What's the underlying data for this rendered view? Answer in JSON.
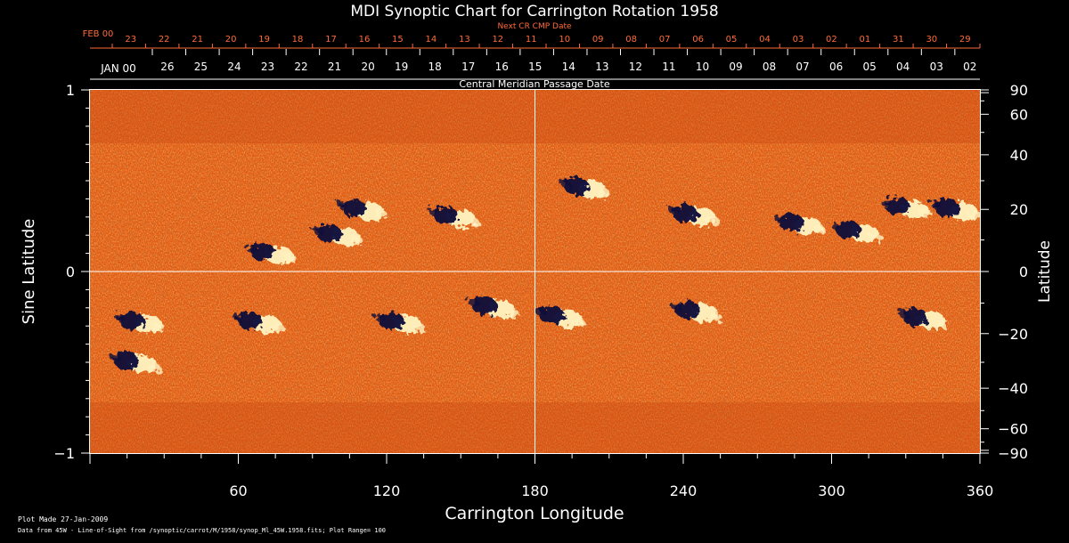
{
  "chart_data": {
    "type": "heatmap",
    "title": "MDI Synoptic Chart for Carrington Rotation 1958",
    "top_axis_red_label": "Next CR CMP Date",
    "top_axis_red_start": "FEB 00",
    "top_axis_red_ticks": [
      "23",
      "22",
      "21",
      "20",
      "19",
      "18",
      "17",
      "16",
      "15",
      "14",
      "13",
      "12",
      "11",
      "10",
      "09",
      "08",
      "07",
      "06",
      "05",
      "04",
      "03",
      "02",
      "01",
      "31",
      "30",
      "29"
    ],
    "top_axis_white_start": "JAN 00",
    "top_axis_white_ticks": [
      "26",
      "25",
      "24",
      "23",
      "22",
      "21",
      "20",
      "19",
      "18",
      "17",
      "16",
      "15",
      "14",
      "13",
      "12",
      "11",
      "10",
      "09",
      "08",
      "07",
      "06",
      "05",
      "04",
      "03",
      "02"
    ],
    "top_axis_subtitle": "Central Meridian Passage Date",
    "xlabel": "Carrington Longitude",
    "xlim": [
      0,
      360
    ],
    "x_ticks": [
      60,
      120,
      180,
      240,
      300,
      360
    ],
    "ylabel_left": "Sine Latitude",
    "ylim_left": [
      -1,
      1
    ],
    "y_ticks_left": [
      "1",
      "0",
      "−1"
    ],
    "ylabel_right": "Latitude",
    "y_ticks_right": [
      {
        "lat": 90,
        "label": "90"
      },
      {
        "lat": 60,
        "label": "60"
      },
      {
        "lat": 40,
        "label": "40"
      },
      {
        "lat": 20,
        "label": "20"
      },
      {
        "lat": 0,
        "label": "0"
      },
      {
        "lat": -20,
        "label": "−20"
      },
      {
        "lat": -40,
        "label": "−40"
      },
      {
        "lat": -60,
        "label": "−60"
      },
      {
        "lat": -90,
        "label": "−90"
      }
    ],
    "colors": {
      "background_field": "#e05a14",
      "positive_polarity": "#fff3c0",
      "negative_polarity": "#0a0a3a"
    },
    "active_regions": [
      {
        "lon": 18,
        "sinlat": -0.5,
        "polarity": "mixed"
      },
      {
        "lon": 20,
        "sinlat": -0.28,
        "polarity": "mixed"
      },
      {
        "lon": 73,
        "sinlat": 0.1,
        "polarity": "mixed"
      },
      {
        "lon": 68,
        "sinlat": -0.28,
        "polarity": "mixed"
      },
      {
        "lon": 110,
        "sinlat": 0.34,
        "polarity": "mixed"
      },
      {
        "lon": 100,
        "sinlat": 0.2,
        "polarity": "mixed"
      },
      {
        "lon": 125,
        "sinlat": -0.28,
        "polarity": "mixed"
      },
      {
        "lon": 147,
        "sinlat": 0.3,
        "polarity": "mixed"
      },
      {
        "lon": 163,
        "sinlat": -0.2,
        "polarity": "mixed"
      },
      {
        "lon": 190,
        "sinlat": -0.25,
        "polarity": "mixed"
      },
      {
        "lon": 200,
        "sinlat": 0.46,
        "polarity": "mixed"
      },
      {
        "lon": 245,
        "sinlat": -0.22,
        "polarity": "mixed"
      },
      {
        "lon": 244,
        "sinlat": 0.31,
        "polarity": "mixed"
      },
      {
        "lon": 287,
        "sinlat": 0.26,
        "polarity": "mixed"
      },
      {
        "lon": 310,
        "sinlat": 0.22,
        "polarity": "mixed"
      },
      {
        "lon": 330,
        "sinlat": 0.35,
        "polarity": "mixed"
      },
      {
        "lon": 337,
        "sinlat": -0.26,
        "polarity": "mixed"
      },
      {
        "lon": 350,
        "sinlat": 0.34,
        "polarity": "mixed"
      }
    ]
  },
  "footer": {
    "line1": "Plot Made 27-Jan-2009",
    "line2": "Data from 45W - Line-of-Sight from /synoptic/carrot/M/1958/synop_Ml_45W.1958.fits; Plot Range=  100"
  }
}
